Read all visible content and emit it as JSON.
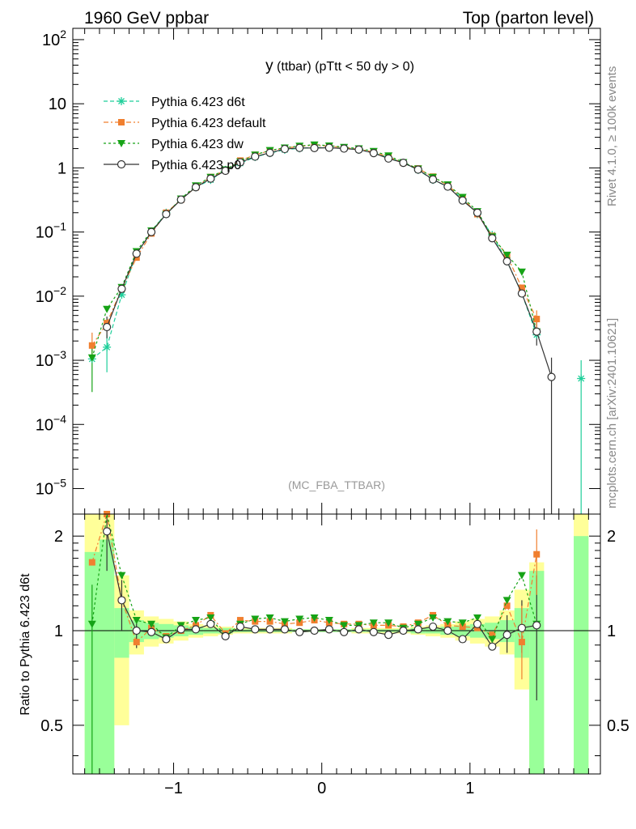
{
  "header": {
    "left": "1960 GeV ppbar",
    "right": "Top (parton level)"
  },
  "side_labels": {
    "rivet": "Rivet 4.1.0, ≥ 100k events",
    "mcplots": "mcplots.cern.ch [arXiv:2401.10621]"
  },
  "colors": {
    "d6t": "#1fcf9a",
    "default": "#f07f2f",
    "dw": "#16a316",
    "p0": "#333333",
    "band_inner": "#99ff99",
    "band_outer": "#ffff99"
  },
  "chart_data": [
    {
      "type": "line",
      "panel": "main",
      "title": "y (ttbar) (pTtt < 50 dy > 0)",
      "title_main": "y",
      "title_rest": "(ttbar) (pTtt < 50 dy > 0)",
      "watermark": "(MC_FBA_TTBAR)",
      "xlabel": "",
      "ylabel": "",
      "yscale": "log",
      "xlim": [
        -1.68,
        1.88
      ],
      "ylim": [
        4e-06,
        150
      ],
      "yticks": [
        {
          "v": 1e-05,
          "base": "10",
          "exp": "−5"
        },
        {
          "v": 0.0001,
          "base": "10",
          "exp": "−4"
        },
        {
          "v": 0.001,
          "base": "10",
          "exp": "−3"
        },
        {
          "v": 0.01,
          "base": "10",
          "exp": "−2"
        },
        {
          "v": 0.1,
          "base": "10",
          "exp": "−1"
        },
        {
          "v": 1,
          "base": "1",
          "exp": ""
        },
        {
          "v": 10,
          "base": "10",
          "exp": ""
        },
        {
          "v": 100,
          "base": "10",
          "exp": "2"
        }
      ],
      "x": [
        -1.55,
        -1.45,
        -1.35,
        -1.25,
        -1.15,
        -1.05,
        -0.95,
        -0.85,
        -0.75,
        -0.65,
        -0.55,
        -0.45,
        -0.35,
        -0.25,
        -0.15,
        -0.05,
        0.05,
        0.15,
        0.25,
        0.35,
        0.45,
        0.55,
        0.65,
        0.75,
        0.85,
        0.95,
        1.05,
        1.15,
        1.25,
        1.35,
        1.45,
        1.55,
        1.75
      ],
      "series": [
        {
          "name": "Pythia 6.423 d6t",
          "key": "d6t",
          "style": "dashed",
          "marker": "star",
          "values": [
            0.00105,
            0.0016,
            0.0105,
            0.046,
            0.1,
            0.2,
            0.32,
            0.5,
            0.65,
            0.93,
            1.18,
            1.48,
            1.7,
            1.92,
            2.02,
            2.08,
            2.06,
            2.02,
            1.92,
            1.72,
            1.45,
            1.2,
            0.93,
            0.65,
            0.51,
            0.33,
            0.19,
            0.09,
            0.035,
            0.011,
            0.0025,
            null,
            0.00052
          ]
        },
        {
          "name": "Pythia 6.423 default",
          "key": "default",
          "style": "dashdot",
          "marker": "square",
          "values": [
            0.0017,
            0.0038,
            0.013,
            0.04,
            0.095,
            0.2,
            0.32,
            0.5,
            0.72,
            0.92,
            1.3,
            1.6,
            1.85,
            2.04,
            2.17,
            2.25,
            2.18,
            2.08,
            1.97,
            1.76,
            1.48,
            1.2,
            0.98,
            0.73,
            0.53,
            0.34,
            0.19,
            0.087,
            0.043,
            0.0135,
            0.0044,
            null,
            null
          ]
        },
        {
          "name": "Pythia 6.423 dw",
          "key": "dw",
          "style": "dotted",
          "marker": "triangle",
          "values": [
            0.0011,
            0.0063,
            0.0138,
            0.05,
            0.105,
            0.19,
            0.33,
            0.53,
            0.72,
            0.94,
            1.25,
            1.6,
            1.88,
            2.06,
            2.2,
            2.3,
            2.22,
            2.11,
            2.0,
            1.82,
            1.55,
            1.22,
            0.97,
            0.72,
            0.55,
            0.35,
            0.21,
            0.085,
            0.044,
            0.024,
            0.0028,
            null,
            null
          ]
        },
        {
          "name": "Pythia 6.423 p0",
          "key": "p0",
          "style": "solid",
          "marker": "circle",
          "values": [
            null,
            0.0033,
            0.013,
            0.046,
            0.1,
            0.19,
            0.32,
            0.5,
            0.68,
            0.9,
            1.22,
            1.5,
            1.72,
            1.97,
            2.05,
            2.04,
            2.06,
            2.0,
            1.93,
            1.7,
            1.4,
            1.2,
            0.94,
            0.66,
            0.51,
            0.31,
            0.2,
            0.08,
            0.035,
            0.011,
            0.0028,
            0.00055,
            null
          ]
        }
      ],
      "legend_position": "top-left"
    },
    {
      "type": "line",
      "panel": "ratio",
      "ylabel": "Ratio to Pythia 6.423 d6t",
      "xlabel": "",
      "xlim": [
        -1.68,
        1.88
      ],
      "ylim": [
        0.35,
        2.35
      ],
      "yticks": [
        0.5,
        1,
        2
      ],
      "ytick_labels": [
        "0.5",
        "1",
        "2"
      ],
      "xticks": [
        -1,
        0,
        1
      ],
      "xtick_labels": [
        "−1",
        "0",
        "1"
      ],
      "x": [
        -1.55,
        -1.45,
        -1.35,
        -1.25,
        -1.15,
        -1.05,
        -0.95,
        -0.85,
        -0.75,
        -0.65,
        -0.55,
        -0.45,
        -0.35,
        -0.25,
        -0.15,
        -0.05,
        0.05,
        0.15,
        0.25,
        0.35,
        0.45,
        0.55,
        0.65,
        0.75,
        0.85,
        0.95,
        1.05,
        1.15,
        1.25,
        1.35,
        1.45
      ],
      "series": [
        {
          "name": "Pythia 6.423 default",
          "key": "default",
          "style": "dashdot",
          "marker": "square",
          "values": [
            1.65,
            2.35,
            1.25,
            0.92,
            1.02,
            0.96,
            1.0,
            1.04,
            1.12,
            0.98,
            1.08,
            1.07,
            1.07,
            1.05,
            1.06,
            1.08,
            1.06,
            1.05,
            1.05,
            1.04,
            1.04,
            1.03,
            1.06,
            1.12,
            1.04,
            1.03,
            1.02,
            0.97,
            1.2,
            0.92,
            1.75
          ]
        },
        {
          "name": "Pythia 6.423 dw",
          "key": "dw",
          "style": "dotted",
          "marker": "triangle",
          "values": [
            1.05,
            2.7,
            1.5,
            1.08,
            1.05,
            0.95,
            1.04,
            1.08,
            1.1,
            0.96,
            1.05,
            1.09,
            1.1,
            1.07,
            1.09,
            1.1,
            1.08,
            1.04,
            1.04,
            1.06,
            1.06,
            1.02,
            1.05,
            1.1,
            1.07,
            1.06,
            1.1,
            0.94,
            1.25,
            1.5,
            1.05
          ]
        },
        {
          "name": "Pythia 6.423 p0",
          "key": "p0",
          "style": "solid",
          "marker": "circle",
          "values": [
            null,
            2.07,
            1.25,
            1.0,
            0.99,
            0.94,
            1.01,
            1.01,
            1.05,
            0.96,
            1.03,
            1.01,
            1.01,
            1.01,
            0.99,
            1.0,
            1.01,
            0.99,
            1.01,
            0.99,
            0.97,
            1.0,
            1.01,
            1.03,
            1.0,
            0.94,
            1.05,
            0.89,
            0.97,
            1.02,
            1.04
          ]
        }
      ],
      "bands": {
        "x": [
          -1.55,
          -1.45,
          -1.35,
          -1.25,
          -1.15,
          -1.05,
          -0.95,
          -0.85,
          -0.75,
          -0.65,
          -0.55,
          -0.45,
          -0.35,
          -0.25,
          -0.15,
          -0.05,
          0.05,
          0.15,
          0.25,
          0.35,
          0.45,
          0.55,
          0.65,
          0.75,
          0.85,
          0.95,
          1.05,
          1.15,
          1.25,
          1.35,
          1.45,
          1.55,
          1.65,
          1.75
        ],
        "outer_lo": [
          0.35,
          0.35,
          0.5,
          0.84,
          0.89,
          0.91,
          0.93,
          0.95,
          0.96,
          0.97,
          0.98,
          0.98,
          0.98,
          0.98,
          0.99,
          0.99,
          0.99,
          0.99,
          0.98,
          0.98,
          0.98,
          0.98,
          0.97,
          0.96,
          0.95,
          0.93,
          0.91,
          0.89,
          0.84,
          0.65,
          0.35,
          null,
          null,
          0.35
        ],
        "outer_hi": [
          2.35,
          2.35,
          1.5,
          1.16,
          1.11,
          1.09,
          1.07,
          1.05,
          1.04,
          1.03,
          1.02,
          1.02,
          1.02,
          1.02,
          1.01,
          1.01,
          1.01,
          1.01,
          1.02,
          1.02,
          1.02,
          1.02,
          1.03,
          1.04,
          1.05,
          1.07,
          1.09,
          1.11,
          1.16,
          1.35,
          1.65,
          null,
          null,
          2.35
        ],
        "inner_lo": [
          0.35,
          0.35,
          0.82,
          0.92,
          0.94,
          0.95,
          0.96,
          0.97,
          0.98,
          0.98,
          0.99,
          0.99,
          0.99,
          0.99,
          0.99,
          0.99,
          0.99,
          0.99,
          0.99,
          0.99,
          0.99,
          0.99,
          0.98,
          0.98,
          0.97,
          0.96,
          0.95,
          0.94,
          0.92,
          0.82,
          0.35,
          null,
          null,
          0.35
        ],
        "inner_hi": [
          1.78,
          1.95,
          1.18,
          1.08,
          1.06,
          1.05,
          1.04,
          1.03,
          1.02,
          1.02,
          1.01,
          1.01,
          1.01,
          1.01,
          1.01,
          1.01,
          1.01,
          1.01,
          1.01,
          1.01,
          1.01,
          1.01,
          1.02,
          1.02,
          1.03,
          1.04,
          1.05,
          1.06,
          1.08,
          1.18,
          1.55,
          null,
          null,
          2.0
        ]
      }
    }
  ]
}
